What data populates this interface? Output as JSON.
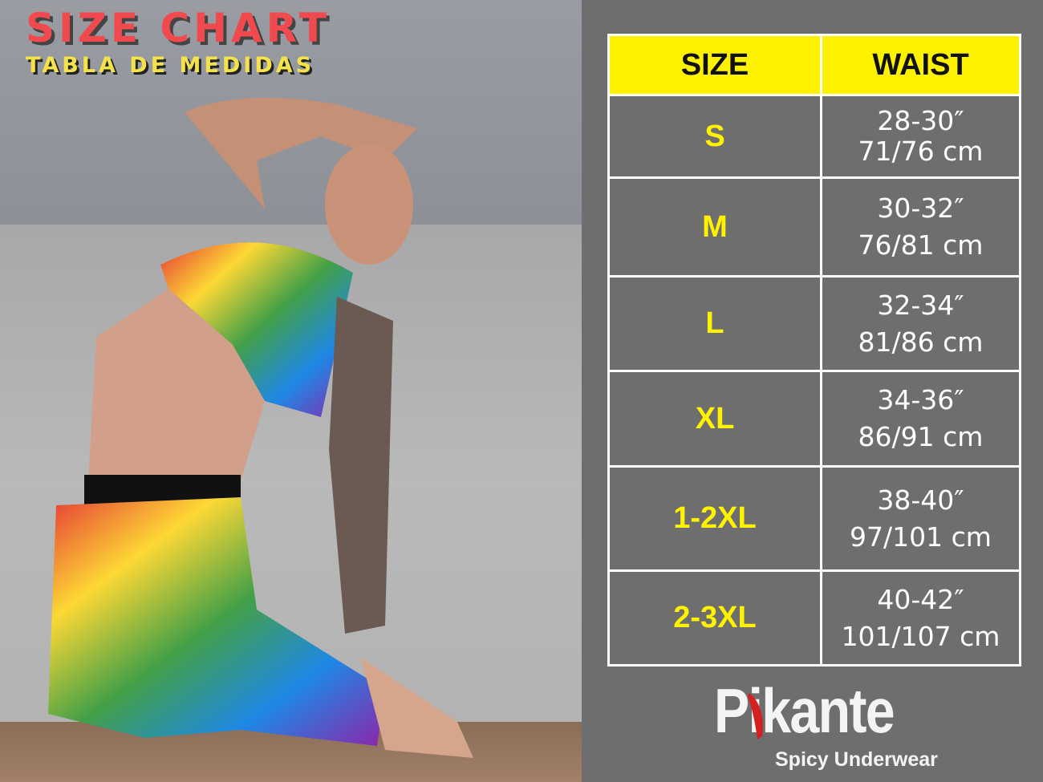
{
  "header": {
    "title": "SIZE CHART",
    "subtitle": "TABLA DE MEDIDAS"
  },
  "table": {
    "columns": [
      "SIZE",
      "WAIST"
    ],
    "rows": [
      {
        "size": "S",
        "inches": "28-30″",
        "cm": "71/76 cm"
      },
      {
        "size": "M",
        "inches": "30-32″",
        "cm": "76/81 cm"
      },
      {
        "size": "L",
        "inches": "32-34″",
        "cm": "81/86 cm"
      },
      {
        "size": "XL",
        "inches": "34-36″",
        "cm": "86/91 cm"
      },
      {
        "size": "1-2XL",
        "inches": "38-40″",
        "cm": "97/101 cm"
      },
      {
        "size": "2-3XL",
        "inches": "40-42″",
        "cm": "101/107 cm"
      }
    ]
  },
  "brand": {
    "name": "Pikante",
    "tagline": "Spicy Underwear"
  },
  "colors": {
    "accent": "#fff200",
    "title": "#f04a4e",
    "panel": "#6e6e6e"
  }
}
